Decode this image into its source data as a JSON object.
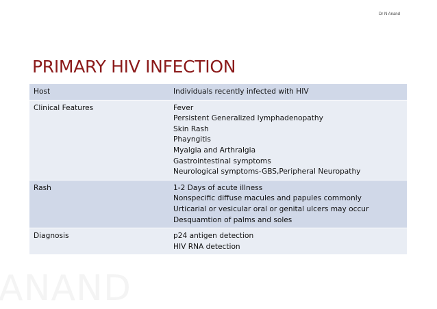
{
  "author": "Dr N Anand",
  "title": "PRIMARY HIV INFECTION",
  "watermark": "ANAND",
  "colors": {
    "title": "#8b1a1a",
    "row_dark": "#d0d8e8",
    "row_light": "#e9edf4"
  },
  "table": {
    "rows": [
      {
        "label": "Host",
        "lines": [
          "Individuals recently infected with HIV"
        ]
      },
      {
        "label": "Clinical Features",
        "lines": [
          "Fever",
          "Persistent Generalized lymphadenopathy",
          "Skin Rash",
          "Phayngitis",
          "Myalgia and Arthralgia",
          "Gastrointestinal symptoms",
          "Neurological symptoms-GBS,Peripheral Neuropathy"
        ]
      },
      {
        "label": "Rash",
        "lines": [
          "1-2 Days of acute illness",
          "Nonspecific diffuse macules and papules commonly",
          "Urticarial or vesicular oral or genital ulcers may occur",
          "Desquamtion of palms and soles"
        ]
      },
      {
        "label": "Diagnosis",
        "lines": [
          "p24 antigen detection",
          "HIV RNA detection"
        ]
      }
    ]
  }
}
